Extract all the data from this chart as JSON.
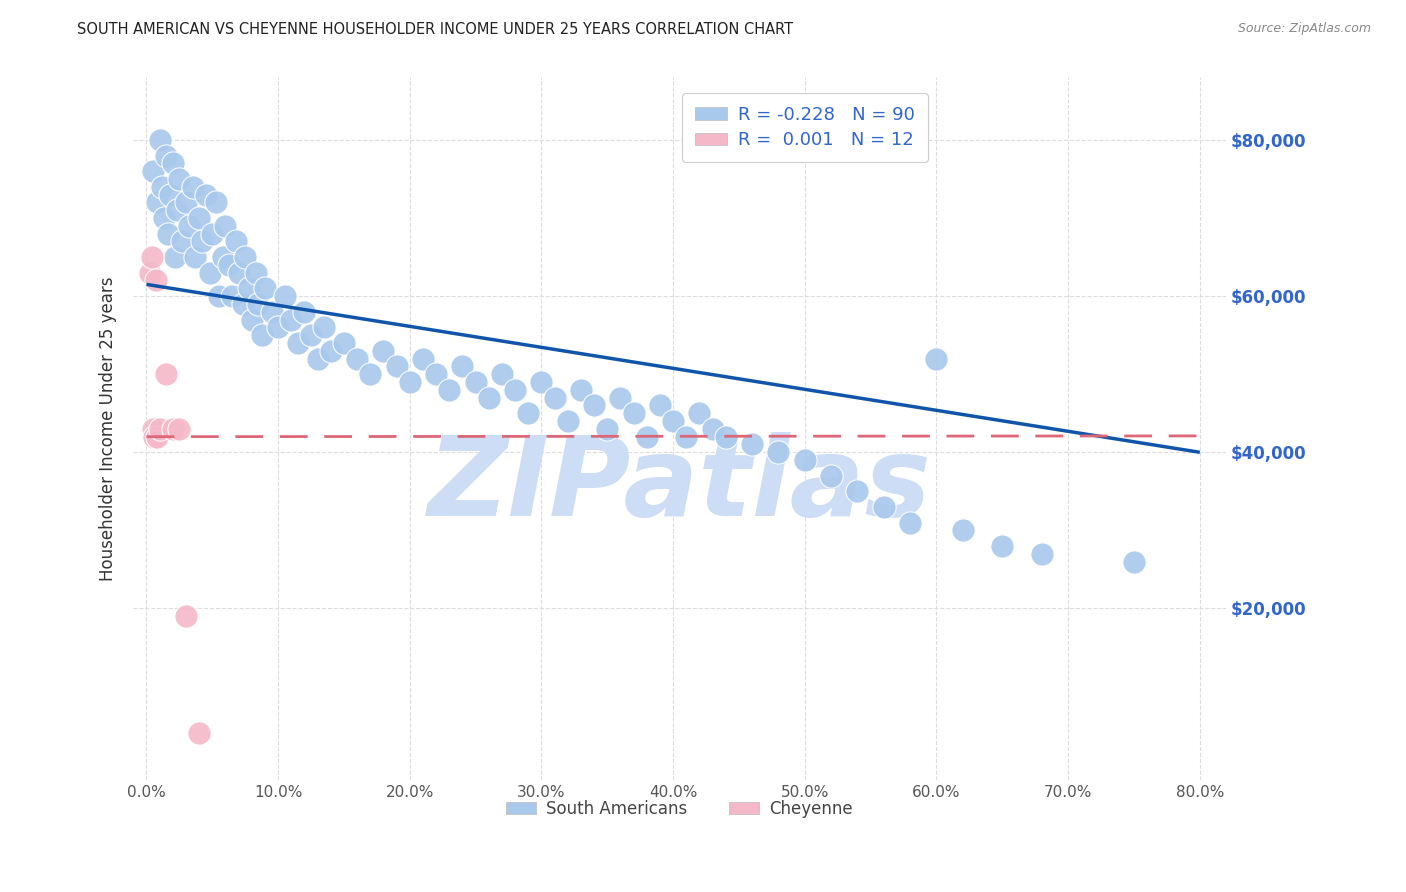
{
  "title": "SOUTH AMERICAN VS CHEYENNE HOUSEHOLDER INCOME UNDER 25 YEARS CORRELATION CHART",
  "source": "Source: ZipAtlas.com",
  "ylabel": "Householder Income Under 25 years",
  "xlabel_ticks": [
    "0.0%",
    "10.0%",
    "20.0%",
    "30.0%",
    "40.0%",
    "50.0%",
    "60.0%",
    "70.0%",
    "80.0%"
  ],
  "xlabel_vals": [
    0,
    10,
    20,
    30,
    40,
    50,
    60,
    70,
    80
  ],
  "ylabel_ticks": [
    "$20,000",
    "$40,000",
    "$60,000",
    "$80,000"
  ],
  "ylabel_vals": [
    20000,
    40000,
    60000,
    80000
  ],
  "ylim": [
    -2000,
    88000
  ],
  "xlim": [
    -1,
    82
  ],
  "legend1_label": "R = -0.228   N = 90",
  "legend2_label": "R =  0.001   N = 12",
  "blue_color": "#A8C8EC",
  "pink_color": "#F4B8C8",
  "line_blue": "#1155AA",
  "line_pink": "#DD6677",
  "watermark": "ZIPatlas",
  "watermark_color": "#CCDDF5",
  "south_american_x": [
    0.5,
    0.8,
    1.0,
    1.2,
    1.3,
    1.5,
    1.6,
    1.8,
    2.0,
    2.2,
    2.3,
    2.5,
    2.7,
    3.0,
    3.2,
    3.5,
    3.7,
    4.0,
    4.2,
    4.5,
    4.8,
    5.0,
    5.3,
    5.5,
    5.8,
    6.0,
    6.3,
    6.5,
    6.8,
    7.0,
    7.3,
    7.5,
    7.8,
    8.0,
    8.3,
    8.5,
    8.8,
    9.0,
    9.5,
    10.0,
    10.5,
    11.0,
    11.5,
    12.0,
    12.5,
    13.0,
    13.5,
    14.0,
    15.0,
    16.0,
    17.0,
    18.0,
    19.0,
    20.0,
    21.0,
    22.0,
    23.0,
    24.0,
    25.0,
    26.0,
    27.0,
    28.0,
    29.0,
    30.0,
    31.0,
    32.0,
    33.0,
    34.0,
    35.0,
    36.0,
    37.0,
    38.0,
    39.0,
    40.0,
    41.0,
    42.0,
    43.0,
    44.0,
    46.0,
    48.0,
    50.0,
    52.0,
    54.0,
    56.0,
    58.0,
    60.0,
    62.0,
    65.0,
    68.0,
    75.0
  ],
  "south_american_y": [
    76000,
    72000,
    80000,
    74000,
    70000,
    78000,
    68000,
    73000,
    77000,
    65000,
    71000,
    75000,
    67000,
    72000,
    69000,
    74000,
    65000,
    70000,
    67000,
    73000,
    63000,
    68000,
    72000,
    60000,
    65000,
    69000,
    64000,
    60000,
    67000,
    63000,
    59000,
    65000,
    61000,
    57000,
    63000,
    59000,
    55000,
    61000,
    58000,
    56000,
    60000,
    57000,
    54000,
    58000,
    55000,
    52000,
    56000,
    53000,
    54000,
    52000,
    50000,
    53000,
    51000,
    49000,
    52000,
    50000,
    48000,
    51000,
    49000,
    47000,
    50000,
    48000,
    45000,
    49000,
    47000,
    44000,
    48000,
    46000,
    43000,
    47000,
    45000,
    42000,
    46000,
    44000,
    42000,
    45000,
    43000,
    42000,
    41000,
    40000,
    39000,
    37000,
    35000,
    33000,
    31000,
    52000,
    30000,
    28000,
    27000,
    26000
  ],
  "cheyenne_x": [
    0.3,
    0.4,
    0.5,
    0.6,
    0.7,
    0.8,
    1.0,
    1.5,
    2.0,
    2.5,
    3.0,
    4.0
  ],
  "cheyenne_y": [
    63000,
    65000,
    43000,
    42000,
    62000,
    42000,
    43000,
    50000,
    43000,
    43000,
    19000,
    4000
  ],
  "blue_line_x": [
    0,
    80
  ],
  "blue_line_y": [
    61500,
    40000
  ],
  "pink_line_x": [
    0,
    80
  ],
  "pink_line_y": [
    42000,
    42100
  ],
  "grid_color": "#DDDDDD",
  "bg_color": "#FFFFFF",
  "title_color": "#222222",
  "axis_label_color": "#333333",
  "right_yaxis_color": "#3366CC"
}
